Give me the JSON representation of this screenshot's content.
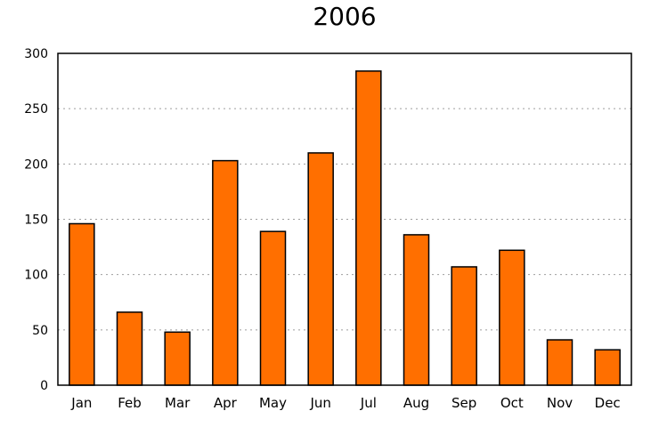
{
  "title": "2006",
  "chart_data": {
    "type": "bar",
    "title": "2006",
    "categories": [
      "Jan",
      "Feb",
      "Mar",
      "Apr",
      "May",
      "Jun",
      "Jul",
      "Aug",
      "Sep",
      "Oct",
      "Nov",
      "Dec"
    ],
    "values": [
      146,
      66,
      48,
      203,
      139,
      210,
      284,
      136,
      107,
      122,
      41,
      32
    ],
    "xlabel": "",
    "ylabel": "",
    "ylim": [
      0,
      300
    ],
    "ytick_step": 50,
    "yticks": [
      0,
      50,
      100,
      150,
      200,
      250,
      300
    ],
    "grid": "horizontal-dashed",
    "legend_position": "none",
    "colors": {
      "bar_fill": "#FF6F00",
      "bar_border": "#000000",
      "gridline": "#9E9E9E",
      "axis_box": "#000000",
      "background": "#FFFFFF",
      "text": "#000000"
    }
  }
}
